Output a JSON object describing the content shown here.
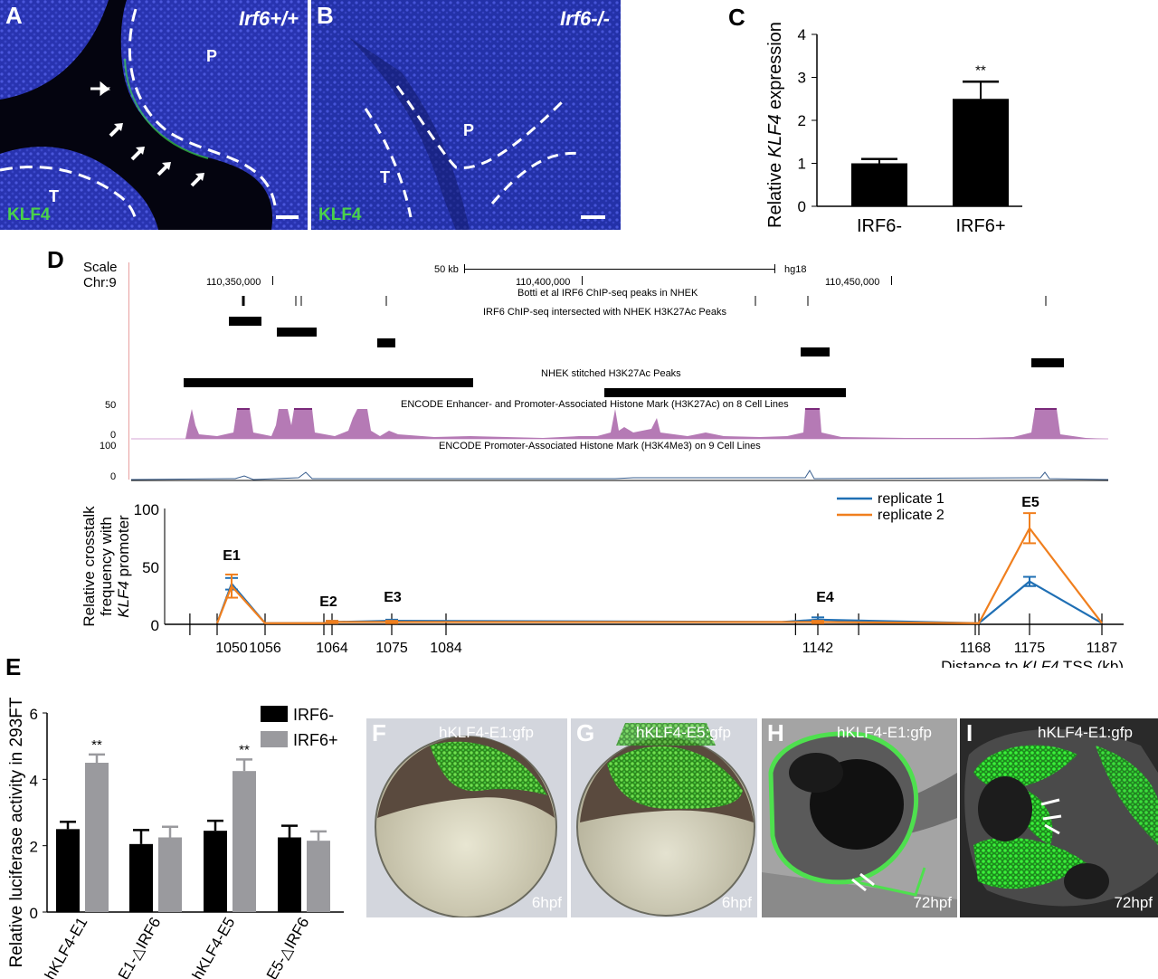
{
  "panels": {
    "A": {
      "letter": "A",
      "genotype": "Irf6+/+",
      "stain": "KLF4",
      "labels": {
        "P": "P",
        "T": "T"
      }
    },
    "B": {
      "letter": "B",
      "genotype": "Irf6-/-",
      "stain": "KLF4",
      "labels": {
        "P": "P",
        "T": "T"
      }
    },
    "C": {
      "letter": "C"
    },
    "D": {
      "letter": "D"
    },
    "E": {
      "letter": "E"
    },
    "F": {
      "letter": "F",
      "construct": "hKLF4-E1:gfp",
      "stage": "6hpf"
    },
    "G": {
      "letter": "G",
      "construct": "hKLF4-E5:gfp",
      "stage": "6hpf"
    },
    "H": {
      "letter": "H",
      "construct": "hKLF4-E1:gfp",
      "stage": "72hpf"
    },
    "I": {
      "letter": "I",
      "construct": "hKLF4-E1:gfp",
      "stage": "72hpf"
    }
  },
  "genome_browser": {
    "scale_label": "Scale",
    "chr_label": "Chr:9",
    "scalebar_label": "50 kb",
    "assembly": "hg18",
    "coords": [
      "110,350,000",
      "110,400,000",
      "110,450,000"
    ],
    "tracks": [
      "Botti et al IRF6 ChIP-seq peaks in NHEK",
      "IRF6 ChIP-seq intersected with NHEK H3K27Ac Peaks",
      "NHEK stitched H3K27Ac Peaks",
      "ENCODE Enhancer- and Promoter-Associated Histone Mark (H3K27Ac) on 8 Cell Lines",
      "ENCODE Promoter-Associated Histone Mark (H3K4Me3) on 9 Cell Lines"
    ],
    "enhancers": [
      "E1",
      "E2",
      "E3",
      "E4",
      "E5"
    ],
    "h3k27ac_axis": {
      "max": "50",
      "min": "0"
    },
    "h3k4me3_axis": {
      "max": "100",
      "min": "0"
    }
  },
  "chart_data": [
    {
      "id": "C",
      "type": "bar",
      "categories": [
        "IRF6-",
        "IRF6+"
      ],
      "values": [
        1.0,
        2.5
      ],
      "errors": [
        0.1,
        0.4
      ],
      "significance": [
        "",
        "**"
      ],
      "ylabel": "Relative KLF4 expression",
      "ylim": [
        0,
        4
      ],
      "yticks": [
        "0",
        "1",
        "2",
        "3",
        "4"
      ],
      "color": "#000000"
    },
    {
      "id": "D",
      "type": "line",
      "xlabel": "Distance to KLF4 TSS (kb)",
      "ylabel": "Relative crosstalk frequency with KLF4 promoter",
      "ylim": [
        0,
        100
      ],
      "yticks": [
        "0",
        "50",
        "100"
      ],
      "xtick_labels": [
        "1050",
        "1056",
        "1064",
        "1075",
        "1084",
        "1142",
        "1168",
        "1175",
        "1187"
      ],
      "peak_labels": [
        "E1",
        "E2",
        "E3",
        "E4",
        "E5"
      ],
      "series": [
        {
          "name": "replicate 1",
          "color": "#1f6fb4",
          "x": [
            1049,
            1050,
            1056,
            1063,
            1064,
            1075,
            1140,
            1142,
            1168,
            1169,
            1175,
            1187
          ],
          "y": [
            1,
            35,
            1,
            1,
            2,
            3,
            2,
            4,
            1,
            1,
            37,
            1
          ],
          "err": [
            0,
            5,
            0,
            0,
            1,
            1,
            0,
            2,
            0,
            0,
            4,
            0
          ]
        },
        {
          "name": "replicate 2",
          "color": "#f07f1e",
          "x": [
            1049,
            1050,
            1056,
            1063,
            1064,
            1075,
            1140,
            1142,
            1168,
            1169,
            1175,
            1187
          ],
          "y": [
            1,
            33,
            1,
            1,
            2,
            2,
            2,
            2,
            1,
            1,
            83,
            1
          ],
          "err": [
            0,
            10,
            0,
            0,
            1,
            1,
            0,
            1,
            0,
            0,
            13,
            0
          ]
        }
      ]
    },
    {
      "id": "E",
      "type": "bar",
      "categories": [
        "hKLF4-E1",
        "E1-△IRF6",
        "hKLF4-E5",
        "E5-△IRF6"
      ],
      "ylabel": "Relative luciferase activity in 293FT",
      "ylim": [
        0,
        6
      ],
      "yticks": [
        "0",
        "2",
        "4",
        "6"
      ],
      "series": [
        {
          "name": "IRF6-",
          "color": "#000000",
          "values": [
            2.5,
            2.05,
            2.45,
            2.25
          ],
          "errors": [
            0.22,
            0.42,
            0.3,
            0.35
          ]
        },
        {
          "name": "IRF6+",
          "color": "#9a9a9e",
          "values": [
            4.5,
            2.25,
            4.25,
            2.15
          ],
          "errors": [
            0.25,
            0.32,
            0.35,
            0.28
          ]
        }
      ],
      "significance": [
        "**",
        "",
        "**",
        ""
      ]
    }
  ]
}
